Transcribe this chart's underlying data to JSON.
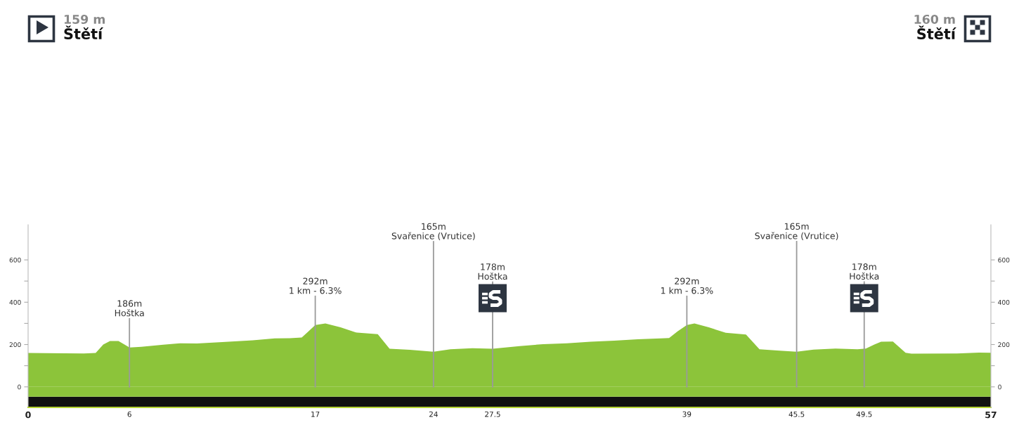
{
  "chart_data": {
    "type": "area",
    "color": "#8cc43a",
    "x": [
      0,
      1.0,
      3.3,
      4.0,
      4.45,
      4.85,
      5.35,
      5.9,
      6.0,
      6.7,
      8.0,
      9.0,
      10.0,
      11.5,
      13.3,
      14.6,
      15.5,
      16.2,
      16.6,
      17.0,
      17.6,
      18.5,
      19.4,
      20.7,
      21.4,
      22.6,
      24.0,
      25.0,
      26.3,
      27.5,
      29.1,
      30.5,
      31.9,
      33.3,
      34.7,
      36.1,
      37.45,
      37.95,
      38.45,
      39.0,
      39.45,
      40.3,
      41.3,
      42.5,
      43.3,
      44.5,
      45.5,
      46.5,
      47.8,
      49.1,
      49.6,
      50.1,
      50.5,
      51.2,
      51.95,
      52.3,
      55.0,
      56.3,
      57.0
    ],
    "values": [
      160,
      159,
      158,
      160,
      200,
      217,
      217,
      191,
      186,
      189,
      199,
      206,
      205,
      212,
      220,
      229,
      230,
      233,
      262,
      292,
      300,
      281,
      257,
      249,
      180,
      175,
      166,
      178,
      183,
      180,
      193,
      202,
      206,
      213,
      218,
      225,
      229,
      231,
      262,
      292,
      300,
      281,
      256,
      247,
      178,
      171,
      166,
      176,
      181,
      178,
      181,
      200,
      213,
      214,
      161,
      157,
      158,
      162,
      161
    ],
    "xlim": [
      0,
      57
    ],
    "xticks": [
      0,
      6,
      17,
      24,
      27.5,
      39,
      45.5,
      49.5,
      57
    ],
    "ylim": [
      -97,
      766
    ],
    "yticks": [
      0,
      {
        "value": 100,
        "label": null
      },
      200,
      {
        "value": 300,
        "label": null
      },
      400,
      {
        "value": 500,
        "label": null
      },
      600
    ],
    "y2lim": [
      -97,
      766
    ],
    "y2ticks": [
      0,
      {
        "value": 100,
        "label": null
      },
      200,
      {
        "value": 300,
        "label": null
      },
      400,
      {
        "value": 500,
        "label": null
      },
      600
    ],
    "ref_lines": [
      {
        "axis": "x",
        "value": 6,
        "label": "186m\nHoštka",
        "color": "#9a9a9a"
      },
      {
        "axis": "x",
        "value": 17,
        "label": "292m\n1 km - 6.3%",
        "color": "#9a9a9a"
      },
      {
        "axis": "x",
        "value": 24,
        "label": "165m\nSvařenice (Vrutice)",
        "color": "#9a9a9a"
      },
      {
        "axis": "x",
        "value": 27.5,
        "label": "178m\nHoštka",
        "color": "#9a9a9a"
      },
      {
        "axis": "x",
        "value": 39,
        "label": "292m\n1 km - 6.3%",
        "color": "#9a9a9a"
      },
      {
        "axis": "x",
        "value": 45.5,
        "label": "165m\nSvařenice (Vrutice)",
        "color": "#9a9a9a"
      },
      {
        "axis": "x",
        "value": 49.5,
        "label": "178m\nHoštka",
        "color": "#9a9a9a"
      }
    ],
    "bands": [
      {
        "axis": "y",
        "from": -97,
        "to": -46,
        "color": "#111111"
      },
      {
        "axis": "y",
        "from": -46,
        "to": 0,
        "color": "#8cc43a"
      }
    ],
    "annotations": [
      "159 m",
      "Štětí",
      "160 m",
      "Štětí"
    ]
  }
}
